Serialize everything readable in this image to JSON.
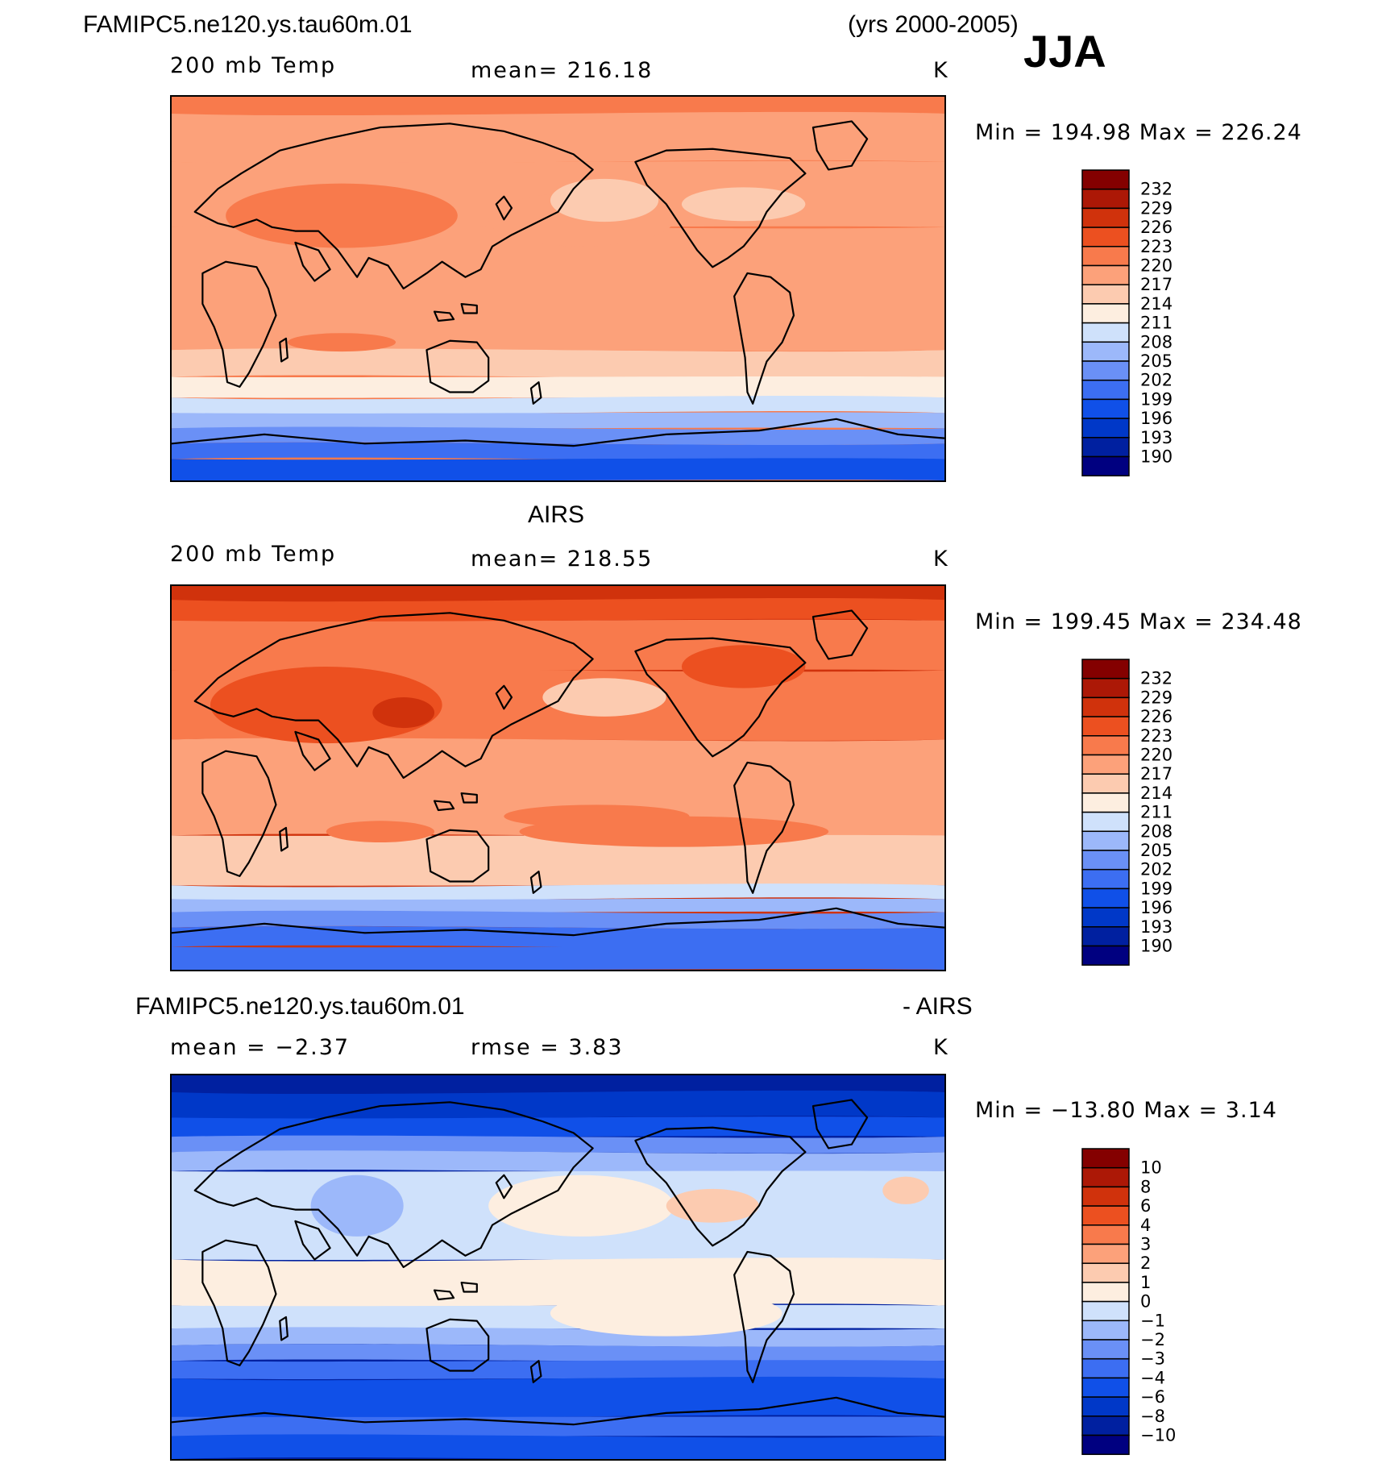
{
  "figure": {
    "case_name": "FAMIPC5.ne120.ys.tau60m.01",
    "years": "(yrs 2000-2005)",
    "season": "JJA"
  },
  "colors": {
    "temp_palette": [
      "#000080",
      "#0020a0",
      "#0038c8",
      "#1050e8",
      "#3c6ef2",
      "#6a90f6",
      "#9cb8fa",
      "#cfe1fb",
      "#fdeee0",
      "#fccbb0",
      "#fca17a",
      "#f87a4c",
      "#ec5020",
      "#d0320c",
      "#ac1806",
      "#840000"
    ],
    "outline": "#000000"
  },
  "panels": [
    {
      "id": "model",
      "title": "",
      "variable": "200 mb Temp",
      "stat": "mean=  216.18",
      "units": "K",
      "range": "Min  =  194.98  Max  =  226.24",
      "colorbar_labels": [
        "232",
        "229",
        "226",
        "223",
        "220",
        "217",
        "214",
        "211",
        "208",
        "205",
        "202",
        "199",
        "196",
        "193",
        "190"
      ]
    },
    {
      "id": "obs",
      "title": "AIRS",
      "variable": "200 mb Temp",
      "stat": "mean=  218.55",
      "units": "K",
      "range": "Min  =  199.45  Max  =  234.48",
      "colorbar_labels": [
        "232",
        "229",
        "226",
        "223",
        "220",
        "217",
        "214",
        "211",
        "208",
        "205",
        "202",
        "199",
        "196",
        "193",
        "190"
      ]
    },
    {
      "id": "diff",
      "title_left": "FAMIPC5.ne120.ys.tau60m.01",
      "title_right": "- AIRS",
      "stat_mean": "mean  =   −2.37",
      "stat_rmse": "rmse  =     3.83",
      "units": "K",
      "range": "Min  =  −13.80  Max  =     3.14",
      "colorbar_labels": [
        "10",
        "8",
        "6",
        "4",
        "3",
        "2",
        "1",
        "0",
        "−1",
        "−2",
        "−3",
        "−4",
        "−6",
        "−8",
        "−10"
      ]
    }
  ]
}
